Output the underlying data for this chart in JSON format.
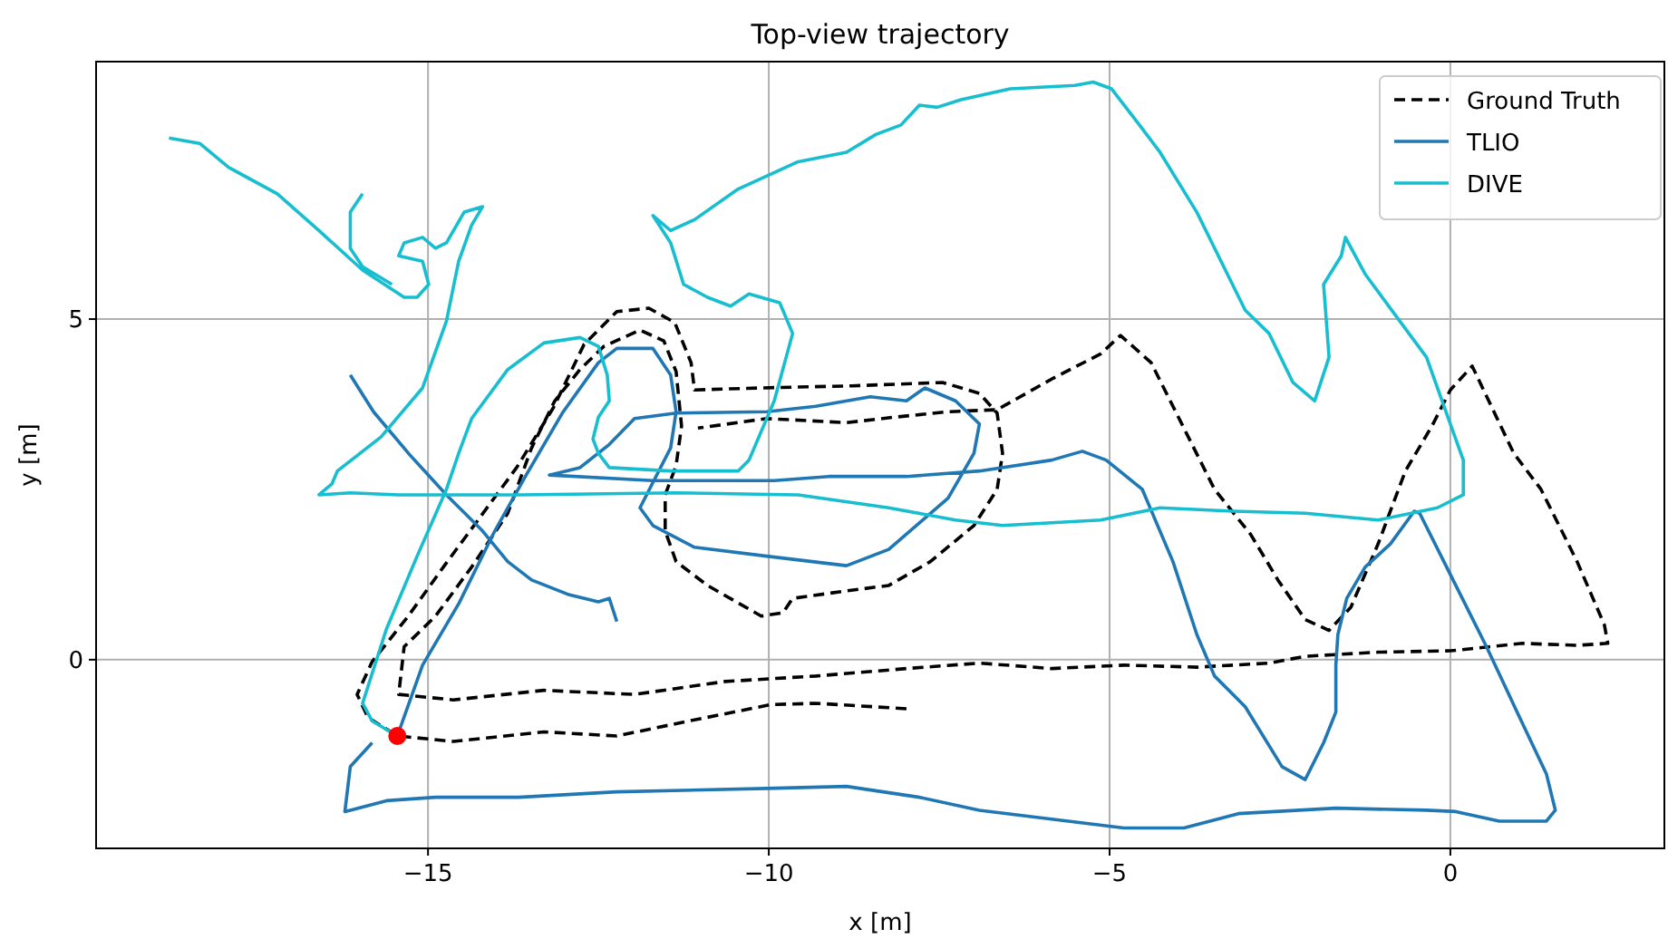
{
  "chart_data": {
    "type": "line",
    "title": "Top-view trajectory",
    "xlabel": "x [m]",
    "ylabel": "y [m]",
    "xlim": [
      -19.87,
      3.14
    ],
    "ylim": [
      -2.77,
      8.78
    ],
    "xticks": [
      -15,
      -10,
      -5,
      0
    ],
    "yticks": [
      0,
      5
    ],
    "grid": true,
    "legend": "top right",
    "series": [
      {
        "name": "Ground Truth",
        "color": "#000000",
        "line_style": "dashed",
        "marker": "none",
        "x": [
          -7.98,
          -9.31,
          -9.97,
          -11.17,
          -12.23,
          -13.3,
          -14.63,
          -15.45,
          -15.88,
          -16.04,
          -15.82,
          -15.29,
          -14.76,
          -14.23,
          -13.7,
          -13.16,
          -12.71,
          -12.23,
          -11.76,
          -11.38,
          -11.14,
          -11.09,
          -10.11,
          -8.78,
          -7.45,
          -6.91,
          -6.65,
          -6.57,
          -6.65,
          -6.99,
          -7.63,
          -8.24,
          -8.86,
          -9.65,
          -9.79,
          -10.11,
          -10.9,
          -11.36,
          -11.52,
          -11.52,
          -11.36,
          -11.28,
          -11.36,
          -11.54,
          -11.89,
          -12.42,
          -12.77,
          -13.14,
          -13.48,
          -13.83,
          -14.36,
          -14.89,
          -15.35,
          -15.43,
          -14.63,
          -13.3,
          -11.97,
          -10.64,
          -9.31,
          -7.98,
          -6.91,
          -5.85,
          -4.79,
          -3.72,
          -2.66,
          -2.13,
          -1.06,
          0.0,
          1.06,
          1.86,
          2.31,
          2.26,
          1.86,
          1.33,
          0.93,
          0.32,
          0.0,
          -0.27,
          -0.66,
          -1.06,
          -1.46,
          -1.78,
          -2.13,
          -2.53,
          -2.93,
          -3.46,
          -3.99,
          -4.39,
          -4.84,
          -5.13,
          -5.85,
          -6.65,
          -7.37,
          -8.16,
          -8.86,
          -10.03,
          -11.04
        ],
        "values": [
          -0.72,
          -0.64,
          -0.66,
          -0.9,
          -1.12,
          -1.06,
          -1.2,
          -1.12,
          -0.85,
          -0.51,
          -0.03,
          0.64,
          1.38,
          2.1,
          2.82,
          3.7,
          4.63,
          5.11,
          5.16,
          4.95,
          4.36,
          3.96,
          3.99,
          4.02,
          4.07,
          3.91,
          3.62,
          3.03,
          2.5,
          1.97,
          1.44,
          1.09,
          1.01,
          0.9,
          0.69,
          0.64,
          1.09,
          1.44,
          1.89,
          2.42,
          2.85,
          3.43,
          4.23,
          4.68,
          4.84,
          4.6,
          4.26,
          3.8,
          3.11,
          2.15,
          1.36,
          0.64,
          0.19,
          -0.51,
          -0.59,
          -0.45,
          -0.51,
          -0.32,
          -0.24,
          -0.13,
          -0.05,
          -0.13,
          -0.08,
          -0.11,
          -0.05,
          0.05,
          0.11,
          0.13,
          0.24,
          0.21,
          0.24,
          0.51,
          1.44,
          2.5,
          3.03,
          4.31,
          3.96,
          3.43,
          2.77,
          1.7,
          0.77,
          0.43,
          0.59,
          1.17,
          1.84,
          2.5,
          3.56,
          4.36,
          4.76,
          4.49,
          4.12,
          3.67,
          3.64,
          3.56,
          3.48,
          3.54,
          3.4
        ]
      },
      {
        "name": "TLIO",
        "color": "#1f77b4",
        "line_style": "solid",
        "marker": "none",
        "x": [
          -15.45,
          -15.08,
          -14.55,
          -14.02,
          -13.56,
          -13.03,
          -12.5,
          -12.23,
          -11.7,
          -11.44,
          -11.36,
          -11.44,
          -11.89,
          -11.7,
          -11.09,
          -10.03,
          -8.86,
          -8.24,
          -7.37,
          -6.99,
          -6.91,
          -7.26,
          -7.71,
          -7.98,
          -8.51,
          -9.31,
          -10.03,
          -11.36,
          -11.97,
          -12.34,
          -12.77,
          -13.22,
          -11.7,
          -10.9,
          -9.92,
          -9.12,
          -7.98,
          -6.91,
          -5.85,
          -5.4,
          -5.05,
          -4.52,
          -4.07,
          -3.72,
          -3.46,
          -3.01,
          -2.47,
          -2.13,
          -1.86,
          -1.68,
          -1.68,
          -1.65,
          -1.52,
          -1.25,
          -0.88,
          -0.53,
          -0.45,
          0.0,
          0.53,
          0.98,
          1.41,
          1.54,
          1.41,
          0.72,
          0.08,
          -0.35,
          -1.68,
          -3.11,
          -3.91,
          -4.79,
          -5.85,
          -6.91,
          -7.79,
          -8.86,
          -10.03,
          -12.23,
          -13.67,
          -14.89,
          -15.61,
          -16.14,
          -16.22,
          -16.14,
          -15.82,
          null,
          -16.14,
          -15.8,
          -15.27,
          -14.73,
          -14.2,
          -13.83,
          -13.48,
          -12.95,
          -12.5,
          -12.34,
          -12.23
        ],
        "values": [
          -1.12,
          -0.08,
          0.82,
          1.89,
          2.71,
          3.62,
          4.36,
          4.57,
          4.57,
          4.18,
          3.64,
          3.11,
          2.23,
          1.97,
          1.65,
          1.52,
          1.38,
          1.62,
          2.37,
          3.03,
          3.46,
          3.8,
          3.99,
          3.8,
          3.86,
          3.72,
          3.64,
          3.62,
          3.54,
          3.16,
          2.82,
          2.71,
          2.63,
          2.63,
          2.63,
          2.69,
          2.69,
          2.77,
          2.93,
          3.06,
          2.93,
          2.5,
          1.44,
          0.37,
          -0.24,
          -0.69,
          -1.57,
          -1.76,
          -1.22,
          -0.77,
          -0.08,
          0.37,
          0.9,
          1.36,
          1.7,
          2.18,
          2.15,
          1.25,
          0.19,
          -0.77,
          -1.68,
          -2.21,
          -2.37,
          -2.37,
          -2.23,
          -2.21,
          -2.18,
          -2.26,
          -2.47,
          -2.47,
          -2.34,
          -2.21,
          -2.02,
          -1.86,
          -1.89,
          -1.94,
          -2.02,
          -2.02,
          -2.07,
          -2.21,
          -2.23,
          -1.57,
          -1.22,
          null,
          4.18,
          3.64,
          3.01,
          2.42,
          1.89,
          1.44,
          1.17,
          0.96,
          0.85,
          0.9,
          0.56
        ]
      },
      {
        "name": "DIVE",
        "color": "#17becf",
        "line_style": "solid",
        "marker": "none",
        "x": [
          -15.45,
          -15.82,
          -15.96,
          -15.61,
          -15.16,
          -14.73,
          -14.55,
          -14.36,
          -13.83,
          -13.3,
          -12.77,
          -12.5,
          -12.37,
          -12.34,
          -12.5,
          -12.58,
          -12.5,
          -12.34,
          -11.44,
          -10.45,
          -10.29,
          -9.92,
          -9.65,
          -9.84,
          -10.29,
          -10.56,
          -10.9,
          -11.25,
          -11.44,
          -11.7,
          -11.44,
          -11.09,
          -10.45,
          -9.57,
          -8.86,
          -8.43,
          -8.06,
          -7.79,
          -7.53,
          -7.18,
          -6.46,
          -5.51,
          -5.24,
          -4.97,
          -4.6,
          -4.26,
          -3.72,
          -3.01,
          -2.66,
          -2.31,
          -1.99,
          -1.78,
          -1.86,
          -1.6,
          -1.54,
          -1.25,
          -0.8,
          -0.35,
          0.0,
          0.19,
          0.19,
          -0.19,
          -1.06,
          -2.13,
          -3.19,
          -4.26,
          -5.13,
          -6.57,
          -7.26,
          -8.24,
          -9.57,
          -11.36,
          -13.67,
          -15.43,
          -16.14,
          -16.6,
          -16.41,
          -16.33,
          -15.69,
          -15.08,
          -14.73,
          -14.55,
          -14.36,
          -14.2,
          -14.47,
          -14.73,
          -14.89,
          -15.08,
          -15.35,
          -15.43,
          -15.08,
          -14.99,
          -15.16,
          -15.35,
          -15.96,
          -16.6,
          -17.21,
          -17.93,
          -18.35,
          -18.8,
          null,
          -15.53,
          -15.96,
          -16.14,
          -16.14,
          -15.96
        ],
        "values": [
          -1.12,
          -0.9,
          -0.64,
          0.45,
          1.52,
          2.5,
          3.03,
          3.54,
          4.26,
          4.65,
          4.73,
          4.6,
          4.18,
          3.8,
          3.56,
          3.24,
          3.03,
          2.82,
          2.77,
          2.77,
          2.93,
          3.8,
          4.79,
          5.24,
          5.37,
          5.19,
          5.32,
          5.51,
          6.12,
          6.52,
          6.3,
          6.46,
          6.91,
          7.31,
          7.45,
          7.71,
          7.85,
          8.14,
          8.11,
          8.22,
          8.38,
          8.43,
          8.48,
          8.38,
          7.9,
          7.45,
          6.57,
          5.13,
          4.79,
          4.07,
          3.8,
          4.44,
          5.51,
          5.93,
          6.2,
          5.66,
          5.05,
          4.44,
          3.46,
          2.93,
          2.42,
          2.23,
          2.05,
          2.15,
          2.18,
          2.23,
          2.05,
          1.97,
          2.05,
          2.23,
          2.42,
          2.45,
          2.42,
          2.42,
          2.45,
          2.42,
          2.58,
          2.77,
          3.27,
          3.99,
          4.97,
          5.85,
          6.38,
          6.65,
          6.57,
          6.12,
          6.04,
          6.2,
          6.12,
          5.93,
          5.85,
          5.51,
          5.32,
          5.32,
          5.72,
          6.3,
          6.84,
          7.23,
          7.58,
          7.66,
          null,
          5.51,
          5.77,
          6.04,
          6.57,
          6.84
        ]
      },
      {
        "type": "scatter",
        "color": "#ff0000",
        "marker": "circle",
        "x": [
          -15.45
        ],
        "values": [
          -1.12
        ]
      }
    ]
  }
}
